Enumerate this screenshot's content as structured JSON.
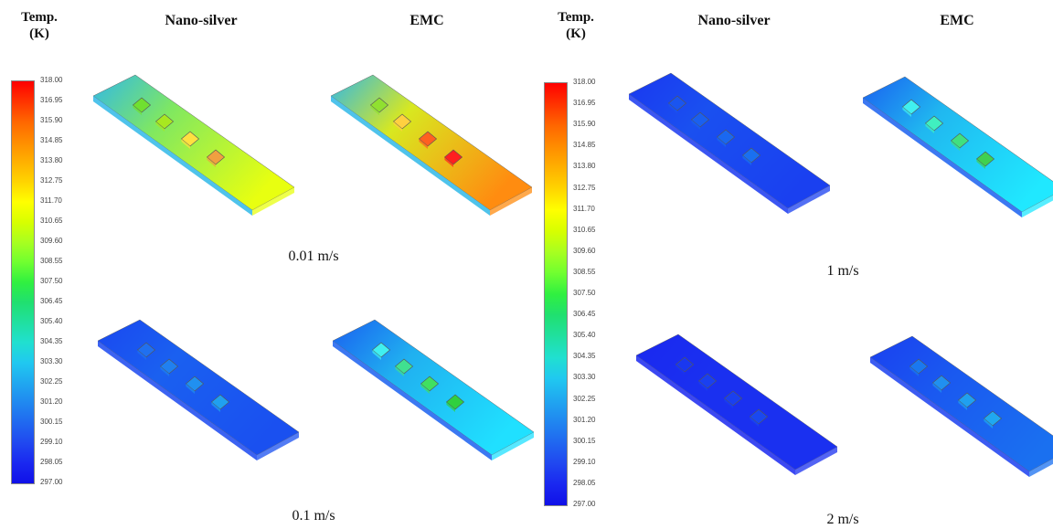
{
  "headers": {
    "temp_line1": "Temp.",
    "temp_line2": "(K)",
    "nano_silver": "Nano-silver",
    "emc": "EMC"
  },
  "speeds": [
    "0.01 m/s",
    "0.1 m/s",
    "1 m/s",
    "2 m/s"
  ],
  "colorbar": {
    "ticks": [
      "318.00",
      "316.95",
      "315.90",
      "314.85",
      "313.80",
      "312.75",
      "311.70",
      "310.65",
      "309.60",
      "308.55",
      "307.50",
      "306.45",
      "305.40",
      "304.35",
      "303.30",
      "302.25",
      "301.20",
      "300.15",
      "299.10",
      "298.05",
      "297.00"
    ],
    "colors": [
      "#ff0000",
      "#ff3300",
      "#ff6600",
      "#ff8c00",
      "#ffb000",
      "#ffd400",
      "#ffff00",
      "#d8ff00",
      "#a8ff20",
      "#70ff30",
      "#30f040",
      "#20e070",
      "#20e0a0",
      "#20e0d0",
      "#20c8f0",
      "#20a8f0",
      "#2088f0",
      "#2068f0",
      "#2048f0",
      "#1a28f0",
      "#1010e8"
    ]
  },
  "panels": [
    {
      "id": "p-001-nano",
      "base": "#e8ff10",
      "mid": "#80e860",
      "end": "#30b8e8",
      "chips": [
        "#70e030",
        "#a8e820",
        "#ffe040",
        "#f0a040"
      ]
    },
    {
      "id": "p-001-emc",
      "base": "#ff8c10",
      "mid": "#d8e820",
      "end": "#30b8e8",
      "chips": [
        "#90e030",
        "#ffd040",
        "#ff6020",
        "#ff2020"
      ]
    },
    {
      "id": "p-01-nano",
      "base": "#1a50f0",
      "mid": "#1a60f0",
      "end": "#1a48f0",
      "chips": [
        "#2070f0",
        "#2080f0",
        "#2090f0",
        "#20a0f0"
      ]
    },
    {
      "id": "p-01-emc",
      "base": "#20e0ff",
      "mid": "#20b0f0",
      "end": "#1a60f0",
      "chips": [
        "#40f0f0",
        "#40e090",
        "#40e060",
        "#30d040"
      ]
    },
    {
      "id": "p-1-nano",
      "base": "#1a40f0",
      "mid": "#1a50f0",
      "end": "#1a38f0",
      "chips": [
        "#1a55f0",
        "#1a60f0",
        "#1a68f0",
        "#1a70f0"
      ]
    },
    {
      "id": "p-1-emc",
      "base": "#20e8ff",
      "mid": "#20b8f0",
      "end": "#1a60f0",
      "chips": [
        "#40f0f0",
        "#40f0c0",
        "#40e080",
        "#40d050"
      ]
    },
    {
      "id": "p-2-nano",
      "base": "#1a30f0",
      "mid": "#1a30f0",
      "end": "#1a28f0",
      "chips": [
        "#1a38f0",
        "#1a40f0",
        "#1a40f0",
        "#1a48f0"
      ]
    },
    {
      "id": "p-2-emc",
      "base": "#1a70f0",
      "mid": "#1a58f0",
      "end": "#1a40f0",
      "chips": [
        "#1a78f0",
        "#2090f0",
        "#20a0f0",
        "#20a8f0"
      ]
    }
  ]
}
